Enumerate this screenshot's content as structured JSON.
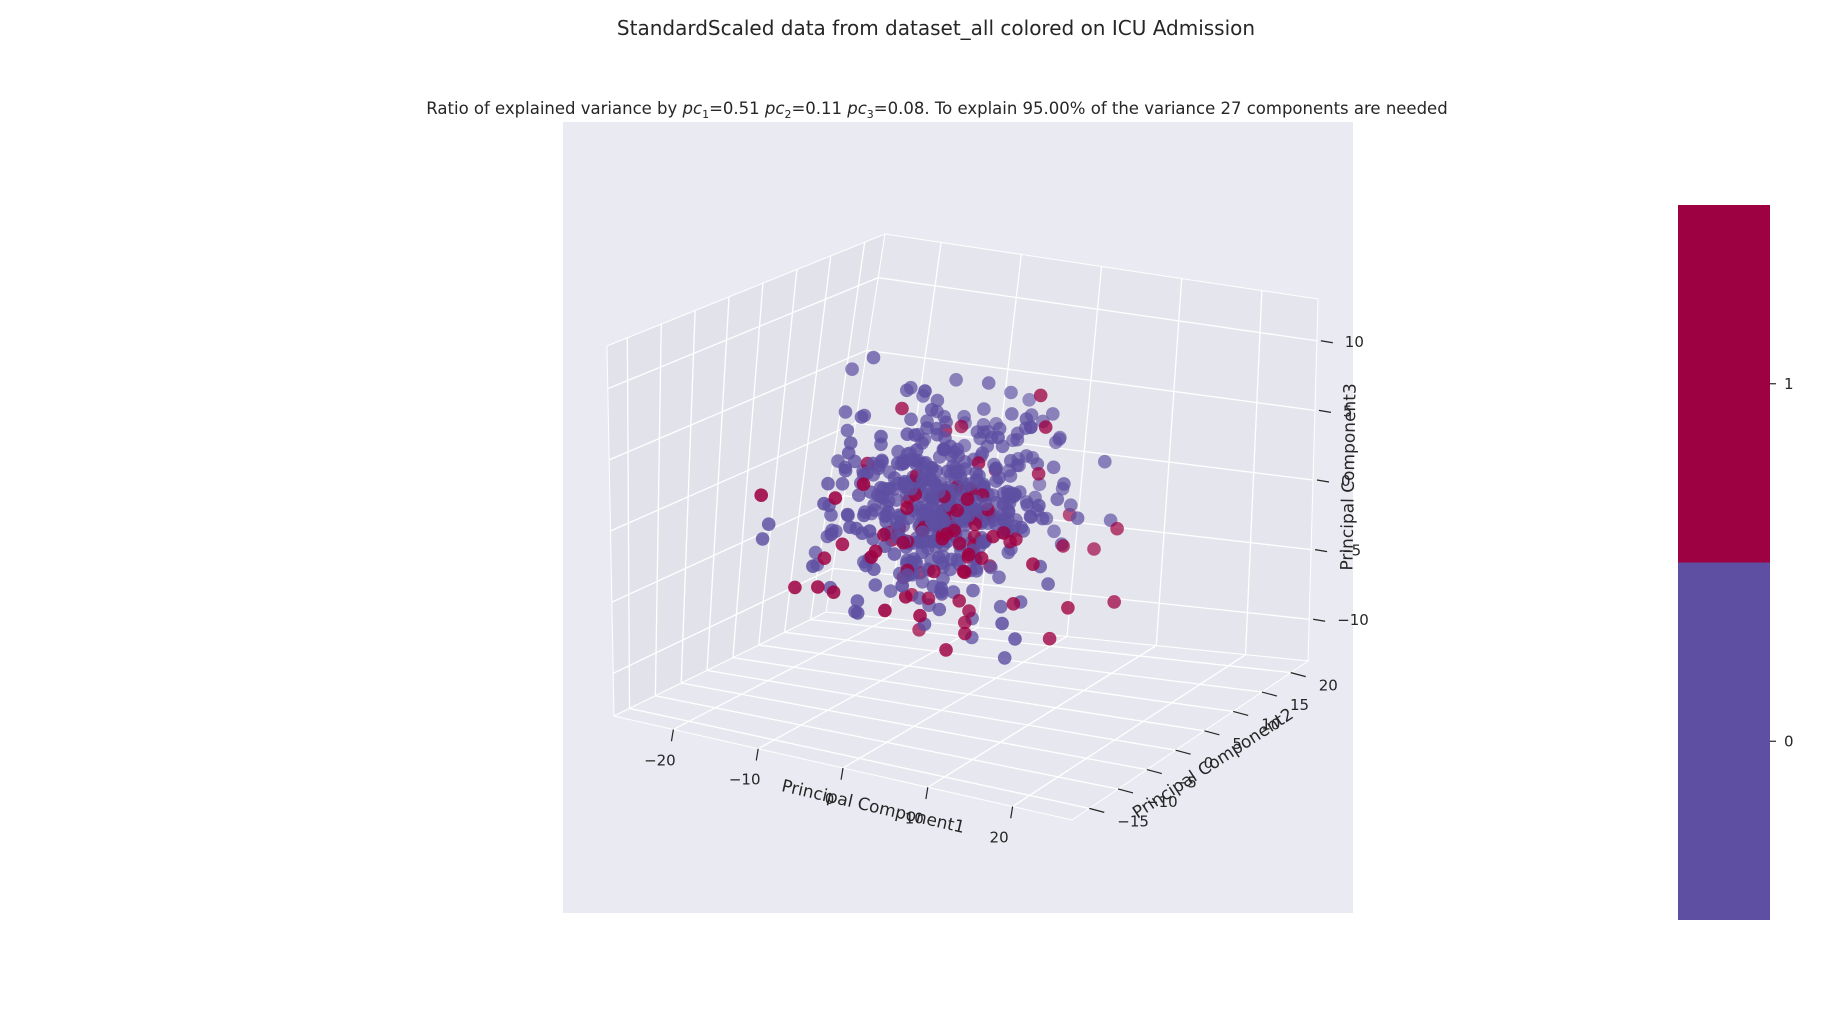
{
  "chart_data": {
    "type": "scatter",
    "projection": "3d",
    "suptitle": "StandardScaled data from dataset_all colored on ICU Admission",
    "title": {
      "prefix": "Ratio of explained variance by ",
      "pc1": {
        "symbol": "pc",
        "sub": "1",
        "value": "=0.51 "
      },
      "pc2": {
        "symbol": "pc",
        "sub": "2",
        "value": "=0.11 "
      },
      "pc3": {
        "symbol": "pc",
        "sub": "3",
        "value": "=0.08"
      },
      "suffix": ". To explain 95.00% of the variance 27 components are needed"
    },
    "xlabel": "Principal Component1",
    "ylabel": "Principal Component2",
    "zlabel": "Principal Component3",
    "xticks": [
      "−20",
      "−10",
      "0",
      "10",
      "20"
    ],
    "yticks": [
      "−15",
      "−10",
      "−5",
      "0",
      "5",
      "10",
      "15",
      "20"
    ],
    "zticks": [
      "−10",
      "−5",
      "0",
      "5",
      "10"
    ],
    "xlim": [
      -27,
      27
    ],
    "ylim": [
      -18,
      23
    ],
    "zlim": [
      -13,
      13
    ],
    "grid": true,
    "colorbar": {
      "ticks": [
        "0",
        "1"
      ],
      "colors": {
        "0": "#5e4fa2",
        "1": "#9e0142"
      }
    },
    "class_counts": {
      "0": 470,
      "1": 90
    },
    "series": [
      {
        "label": "0",
        "color": "#5e4fa2"
      },
      {
        "label": "1",
        "color": "#9e0142"
      }
    ],
    "panel_bg": "#eaeaf2"
  }
}
